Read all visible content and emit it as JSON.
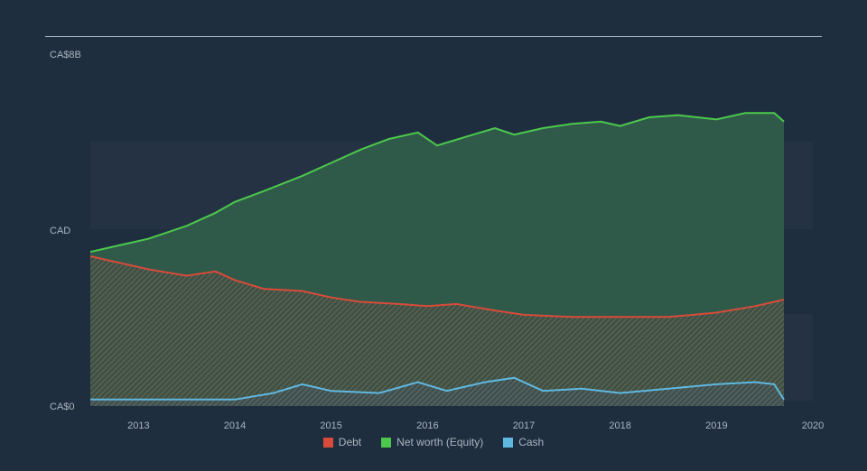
{
  "chart": {
    "type": "area",
    "background_color": "#1f2e3f",
    "text_color": "#aab4bf",
    "title_fontsize": 11,
    "hr_color": "#aab4bf",
    "y_axis_labels": {
      "top": "CA$8B",
      "mid": "CAD",
      "bot": "CA$0"
    },
    "ylim": [
      0,
      8
    ],
    "x_axis": {
      "min": 2012.5,
      "max": 2020,
      "ticks": [
        2013,
        2014,
        2015,
        2016,
        2017,
        2018,
        2019,
        2020
      ]
    },
    "grid_band_color": "rgba(255,255,255,0.025)",
    "series": [
      {
        "name": "Cash",
        "color": "#5fb8e0",
        "fill": "#3d5261",
        "fill_pattern": "diag",
        "points": [
          [
            2012.5,
            0.15
          ],
          [
            2013,
            0.15
          ],
          [
            2013.5,
            0.15
          ],
          [
            2014,
            0.15
          ],
          [
            2014.4,
            0.3
          ],
          [
            2014.7,
            0.5
          ],
          [
            2015,
            0.35
          ],
          [
            2015.5,
            0.3
          ],
          [
            2015.9,
            0.55
          ],
          [
            2016.2,
            0.35
          ],
          [
            2016.6,
            0.55
          ],
          [
            2016.9,
            0.65
          ],
          [
            2017.2,
            0.35
          ],
          [
            2017.6,
            0.4
          ],
          [
            2018,
            0.3
          ],
          [
            2018.5,
            0.4
          ],
          [
            2019,
            0.5
          ],
          [
            2019.4,
            0.55
          ],
          [
            2019.6,
            0.5
          ],
          [
            2019.7,
            0.15
          ]
        ]
      },
      {
        "name": "Debt",
        "color": "#d84b3a",
        "fill": "#4d4a3f",
        "fill_pattern": "diag",
        "points": [
          [
            2012.5,
            3.45
          ],
          [
            2012.8,
            3.3
          ],
          [
            2013.1,
            3.15
          ],
          [
            2013.5,
            3.0
          ],
          [
            2013.8,
            3.1
          ],
          [
            2014,
            2.9
          ],
          [
            2014.3,
            2.7
          ],
          [
            2014.7,
            2.65
          ],
          [
            2015,
            2.5
          ],
          [
            2015.3,
            2.4
          ],
          [
            2015.7,
            2.35
          ],
          [
            2016,
            2.3
          ],
          [
            2016.3,
            2.35
          ],
          [
            2016.7,
            2.2
          ],
          [
            2017,
            2.1
          ],
          [
            2017.5,
            2.05
          ],
          [
            2018,
            2.05
          ],
          [
            2018.5,
            2.05
          ],
          [
            2019,
            2.15
          ],
          [
            2019.4,
            2.3
          ],
          [
            2019.7,
            2.45
          ]
        ]
      },
      {
        "name": "Net worth (Equity)",
        "color": "#4cc94c",
        "fill": "#2f5a4a",
        "points": [
          [
            2012.5,
            3.55
          ],
          [
            2012.8,
            3.7
          ],
          [
            2013.1,
            3.85
          ],
          [
            2013.5,
            4.15
          ],
          [
            2013.8,
            4.45
          ],
          [
            2014,
            4.7
          ],
          [
            2014.3,
            4.95
          ],
          [
            2014.7,
            5.3
          ],
          [
            2015,
            5.6
          ],
          [
            2015.3,
            5.9
          ],
          [
            2015.6,
            6.15
          ],
          [
            2015.9,
            6.3
          ],
          [
            2016.1,
            6.0
          ],
          [
            2016.4,
            6.2
          ],
          [
            2016.7,
            6.4
          ],
          [
            2016.9,
            6.25
          ],
          [
            2017.2,
            6.4
          ],
          [
            2017.5,
            6.5
          ],
          [
            2017.8,
            6.55
          ],
          [
            2018,
            6.45
          ],
          [
            2018.3,
            6.65
          ],
          [
            2018.6,
            6.7
          ],
          [
            2019,
            6.6
          ],
          [
            2019.3,
            6.75
          ],
          [
            2019.6,
            6.75
          ],
          [
            2019.7,
            6.55
          ]
        ]
      }
    ],
    "legend": [
      {
        "label": "Debt",
        "color": "#d84b3a"
      },
      {
        "label": "Net worth (Equity)",
        "color": "#4cc94c"
      },
      {
        "label": "Cash",
        "color": "#5fb8e0"
      }
    ]
  }
}
